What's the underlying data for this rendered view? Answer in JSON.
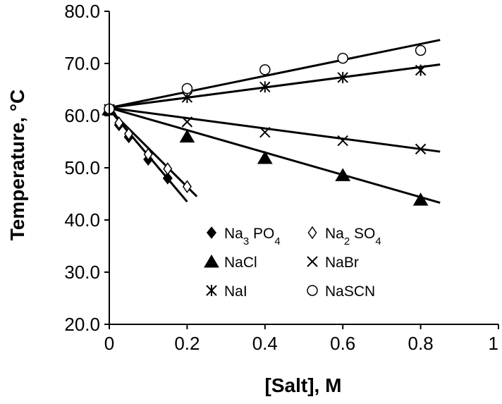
{
  "chart_data": {
    "type": "scatter",
    "xlabel": "[Salt], M",
    "ylabel": "Temperature, °C",
    "xlim": [
      0,
      1
    ],
    "ylim": [
      20,
      80
    ],
    "x_ticks": [
      "0",
      "0.2",
      "0.4",
      "0.6",
      "0.8",
      "1"
    ],
    "y_ticks": [
      "20.0",
      "30.0",
      "40.0",
      "50.0",
      "60.0",
      "70.0",
      "80.0"
    ],
    "grid": false,
    "legend_position": "inside-bottom",
    "series": [
      {
        "name": "Na3PO4",
        "label": {
          "base": "Na",
          "sub1": "3",
          "mid": " PO",
          "sub2": "4"
        },
        "marker": "diamond-filled",
        "points": [
          [
            0,
            61.2
          ],
          [
            0.025,
            58.2
          ],
          [
            0.05,
            55.9
          ],
          [
            0.1,
            51.6
          ],
          [
            0.15,
            48.0
          ]
        ],
        "fit": [
          [
            0,
            61.2
          ],
          [
            0.2,
            43.5
          ]
        ]
      },
      {
        "name": "Na2SO4",
        "label": {
          "base": "Na",
          "sub1": "2",
          "mid": " SO",
          "sub2": "4"
        },
        "marker": "diamond-open",
        "points": [
          [
            0,
            61.2
          ],
          [
            0.025,
            58.6
          ],
          [
            0.05,
            56.5
          ],
          [
            0.1,
            52.6
          ],
          [
            0.15,
            49.8
          ],
          [
            0.2,
            46.4
          ]
        ],
        "fit": [
          [
            0,
            61.2
          ],
          [
            0.225,
            44.5
          ]
        ]
      },
      {
        "name": "NaCl",
        "label": {
          "base": "NaCl"
        },
        "marker": "triangle-filled",
        "points": [
          [
            0,
            61.2
          ],
          [
            0.2,
            56.0
          ],
          [
            0.4,
            51.9
          ],
          [
            0.6,
            48.6
          ],
          [
            0.8,
            43.9
          ]
        ],
        "fit": [
          [
            0,
            61.5
          ],
          [
            0.85,
            43.3
          ]
        ]
      },
      {
        "name": "NaBr",
        "label": {
          "base": "NaBr"
        },
        "marker": "x",
        "points": [
          [
            0,
            61.2
          ],
          [
            0.2,
            58.8
          ],
          [
            0.4,
            56.8
          ],
          [
            0.6,
            55.2
          ],
          [
            0.8,
            53.6
          ]
        ],
        "fit": [
          [
            0,
            61.5
          ],
          [
            0.85,
            53.1
          ]
        ]
      },
      {
        "name": "NaI",
        "label": {
          "base": "NaI"
        },
        "marker": "asterisk",
        "points": [
          [
            0,
            61.2
          ],
          [
            0.2,
            63.5
          ],
          [
            0.4,
            65.5
          ],
          [
            0.6,
            67.3
          ],
          [
            0.8,
            68.7
          ]
        ],
        "fit": [
          [
            0,
            61.5
          ],
          [
            0.85,
            69.8
          ]
        ]
      },
      {
        "name": "NaSCN",
        "label": {
          "base": "NaSCN"
        },
        "marker": "circle-open",
        "points": [
          [
            0,
            61.3
          ],
          [
            0.2,
            65.2
          ],
          [
            0.4,
            68.8
          ],
          [
            0.6,
            71.0
          ],
          [
            0.8,
            72.5
          ]
        ],
        "fit": [
          [
            0,
            61.5
          ],
          [
            0.85,
            74.5
          ]
        ]
      }
    ]
  }
}
